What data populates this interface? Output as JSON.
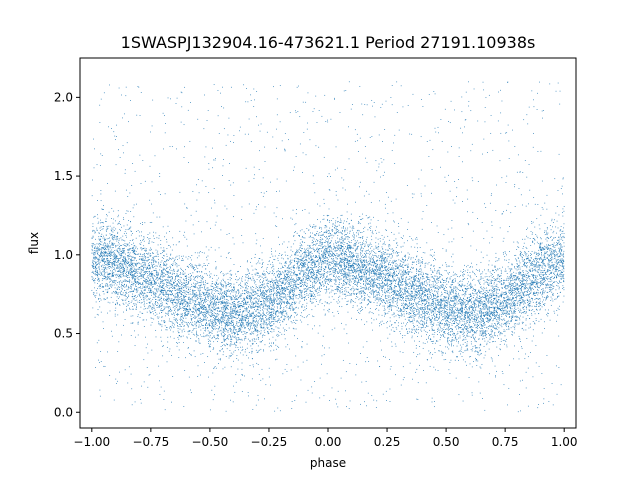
{
  "chart_data": {
    "type": "scatter",
    "title": "1SWASPJ132904.16-473621.1 Period 27191.10938s",
    "xlabel": "phase",
    "ylabel": "flux",
    "xlim": [
      -1.05,
      1.05
    ],
    "ylim": [
      -0.1,
      2.25
    ],
    "xticks": [
      -1.0,
      -0.75,
      -0.5,
      -0.25,
      0.0,
      0.25,
      0.5,
      0.75,
      1.0
    ],
    "xtick_labels": [
      "−1.00",
      "−0.75",
      "−0.50",
      "−0.25",
      "0.00",
      "0.25",
      "0.50",
      "0.75",
      "1.00"
    ],
    "yticks": [
      0.0,
      0.5,
      1.0,
      1.5,
      2.0
    ],
    "ytick_labels": [
      "0.0",
      "0.5",
      "1.0",
      "1.5",
      "2.0"
    ],
    "grid": false,
    "series": [
      {
        "marker_color": "#1f77b4",
        "trend_x": [
          -1.0,
          -0.875,
          -0.75,
          -0.625,
          -0.5,
          -0.375,
          -0.25,
          -0.125,
          0.0,
          0.125,
          0.25,
          0.375,
          0.5,
          0.625,
          0.75,
          0.875,
          1.0
        ],
        "trend_y": [
          0.98,
          0.92,
          0.84,
          0.74,
          0.66,
          0.62,
          0.7,
          0.86,
          0.98,
          0.92,
          0.84,
          0.74,
          0.66,
          0.62,
          0.7,
          0.86,
          0.98
        ],
        "scatter_sd": 0.13,
        "outlier_fraction": 0.1,
        "outlier_range": [
          0.0,
          2.1
        ],
        "n_points": 14000
      }
    ]
  }
}
